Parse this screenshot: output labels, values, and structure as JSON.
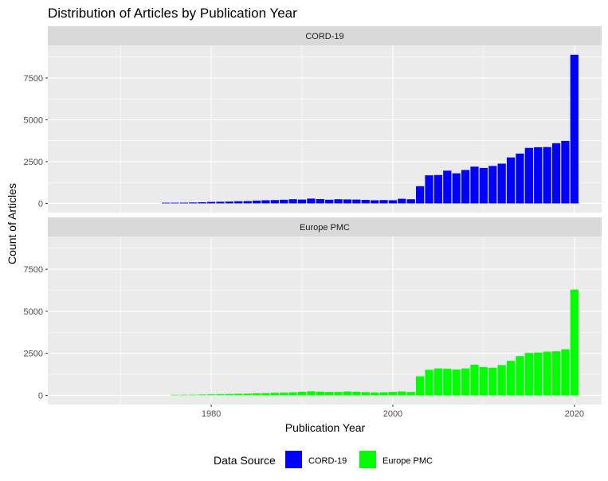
{
  "chart_data": {
    "type": "bar",
    "title": "Distribution of Articles by Publication Year",
    "xlabel": "Publication Year",
    "ylabel": "Count of Articles",
    "xlim": [
      1962,
      2023
    ],
    "ylim": [
      -550,
      9450
    ],
    "x_ticks": [
      1980,
      2000,
      2020
    ],
    "x_minor_ticks": [
      1970,
      1990,
      2010
    ],
    "y_ticks": [
      0,
      2500,
      5000,
      7500
    ],
    "y_minor_ticks": [
      1250,
      3750,
      6250,
      8750
    ],
    "grid": true,
    "legend": {
      "title": "Data Source",
      "position": "bottom",
      "entries": [
        {
          "label": "CORD-19",
          "color": "#0000ff"
        },
        {
          "label": "Europe PMC",
          "color": "#00ff00"
        }
      ]
    },
    "panels": [
      {
        "label": "CORD-19",
        "color": "#0000ff",
        "x": [
          1975,
          1976,
          1977,
          1978,
          1979,
          1980,
          1981,
          1982,
          1983,
          1984,
          1985,
          1986,
          1987,
          1988,
          1989,
          1990,
          1991,
          1992,
          1993,
          1994,
          1995,
          1996,
          1997,
          1998,
          1999,
          2000,
          2001,
          2002,
          2003,
          2004,
          2005,
          2006,
          2007,
          2008,
          2009,
          2010,
          2011,
          2012,
          2013,
          2014,
          2015,
          2016,
          2017,
          2018,
          2019,
          2020
        ],
        "y": [
          40,
          40,
          45,
          55,
          70,
          90,
          100,
          110,
          130,
          140,
          170,
          190,
          200,
          220,
          250,
          230,
          290,
          260,
          220,
          250,
          240,
          230,
          210,
          190,
          200,
          190,
          280,
          250,
          1030,
          1680,
          1700,
          1960,
          1800,
          2000,
          2200,
          2120,
          2240,
          2380,
          2750,
          2980,
          3320,
          3360,
          3370,
          3600,
          3740,
          8890
        ]
      },
      {
        "label": "Europe PMC",
        "color": "#00ff00",
        "x": [
          1976,
          1977,
          1978,
          1979,
          1980,
          1981,
          1982,
          1983,
          1984,
          1985,
          1986,
          1987,
          1988,
          1989,
          1990,
          1991,
          1992,
          1993,
          1994,
          1995,
          1996,
          1997,
          1998,
          1999,
          2000,
          2001,
          2002,
          2003,
          2004,
          2005,
          2006,
          2007,
          2008,
          2009,
          2010,
          2011,
          2012,
          2013,
          2014,
          2015,
          2016,
          2017,
          2018,
          2019,
          2020
        ],
        "y": [
          30,
          30,
          35,
          45,
          55,
          60,
          75,
          90,
          100,
          120,
          130,
          150,
          160,
          180,
          210,
          240,
          220,
          200,
          200,
          230,
          210,
          190,
          170,
          180,
          200,
          230,
          200,
          1130,
          1520,
          1600,
          1580,
          1540,
          1600,
          1820,
          1680,
          1640,
          1800,
          2050,
          2330,
          2520,
          2540,
          2600,
          2620,
          2740,
          6290
        ]
      }
    ]
  }
}
